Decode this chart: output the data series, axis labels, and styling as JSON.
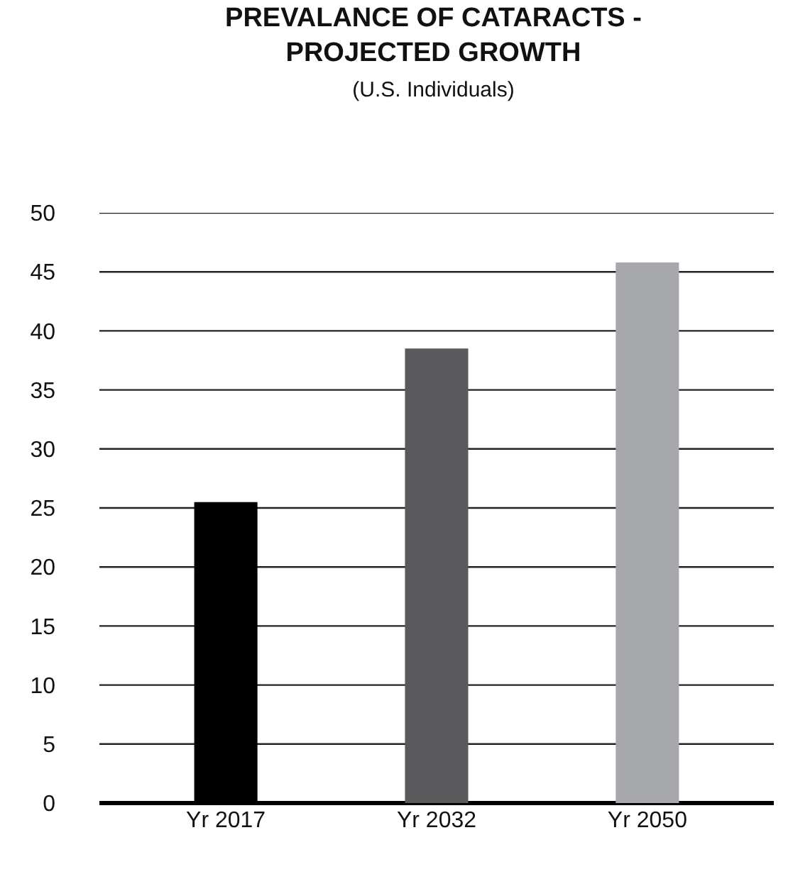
{
  "chart_data": {
    "type": "bar",
    "title": "PREVALANCE OF CATARACTS -\nPROJECTED GROWTH",
    "subtitle": "(U.S. Individuals)",
    "categories": [
      "Yr 2017",
      "Yr 2032",
      "Yr 2050"
    ],
    "values": [
      25.5,
      38.5,
      45.8
    ],
    "colors": [
      "#000000",
      "#5a5a5c",
      "#a7a8ab"
    ],
    "ylim": [
      0,
      50
    ],
    "yticks": [
      0,
      5,
      10,
      15,
      20,
      25,
      30,
      35,
      40,
      45,
      50
    ],
    "grid": "y"
  }
}
